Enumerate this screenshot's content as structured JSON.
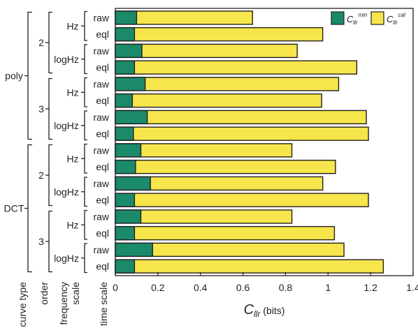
{
  "chart_data": {
    "type": "bar",
    "orientation": "horizontal",
    "stacking": "overlaid",
    "xlabel_main": "C",
    "xlabel_sub": "llr",
    "xlabel_unit": " (bits)",
    "xlim": [
      0,
      1.4
    ],
    "xticks": [
      "0",
      "0.2",
      "0.4",
      "0.6",
      "0.8",
      "1",
      "1.2",
      "1.4"
    ],
    "grid": false,
    "legend_position": "top-right",
    "level_headers": [
      "curve type",
      "order",
      "frequency scale",
      "time scale"
    ],
    "curve_types": [
      "poly",
      "DCT"
    ],
    "orders": [
      "2",
      "3"
    ],
    "frequency_scales": [
      "Hz",
      "logHz"
    ],
    "time_scales": [
      "raw",
      "eql"
    ],
    "categories": [
      "poly/2/Hz/raw",
      "poly/2/Hz/eql",
      "poly/2/logHz/raw",
      "poly/2/logHz/eql",
      "poly/3/Hz/raw",
      "poly/3/Hz/eql",
      "poly/3/logHz/raw",
      "poly/3/logHz/eql",
      "DCT/2/Hz/raw",
      "DCT/2/Hz/eql",
      "DCT/2/logHz/raw",
      "DCT/2/logHz/eql",
      "DCT/3/Hz/raw",
      "DCT/3/Hz/eql",
      "DCT/3/logHz/raw",
      "DCT/3/logHz/eql"
    ],
    "series": [
      {
        "name": "C",
        "name_sub": "llr",
        "name_sup": "min",
        "color": "#1a8a6a",
        "values": [
          0.1,
          0.09,
          0.125,
          0.09,
          0.14,
          0.08,
          0.15,
          0.085,
          0.12,
          0.095,
          0.165,
          0.09,
          0.12,
          0.09,
          0.175,
          0.09
        ]
      },
      {
        "name": "C",
        "name_sub": "llr",
        "name_sup": "cal",
        "color": "#f7e64b",
        "values": [
          0.645,
          0.975,
          0.855,
          1.135,
          1.05,
          0.97,
          1.18,
          1.19,
          0.83,
          1.035,
          0.975,
          1.19,
          0.83,
          1.03,
          1.075,
          1.26
        ]
      }
    ]
  }
}
